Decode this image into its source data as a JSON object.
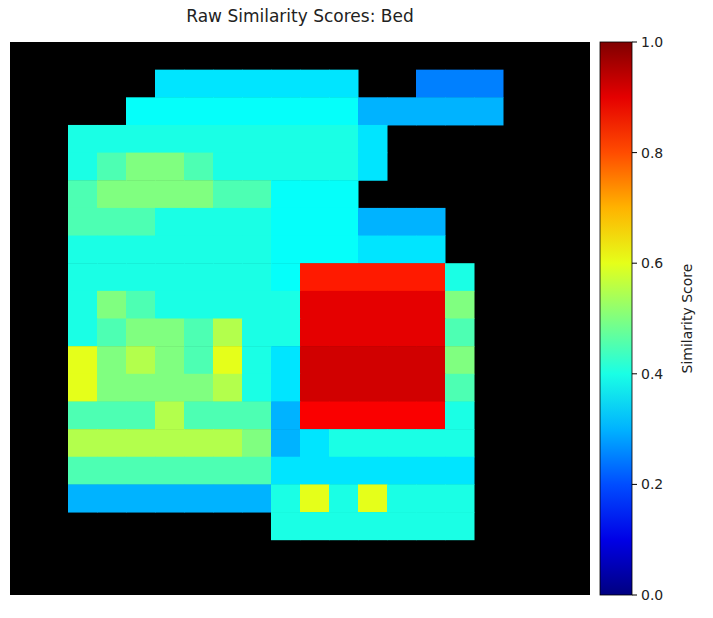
{
  "chart_data": {
    "type": "heatmap",
    "title": "Raw Similarity Scores: Bed",
    "tick_labels": false,
    "colorbar_label": "Similarity Score",
    "colorbar_range": [
      0,
      1
    ],
    "colorbar_ticks": [
      {
        "value": 0,
        "label": "0.0"
      },
      {
        "value": 0.2,
        "label": "0.2"
      },
      {
        "value": 0.4,
        "label": "0.4"
      },
      {
        "value": 0.6,
        "label": "0.6"
      },
      {
        "value": 0.8,
        "label": "0.8"
      },
      {
        "value": 1,
        "label": "1.0"
      }
    ],
    "cells": [
      [
        null,
        null,
        null,
        null,
        null,
        null,
        null,
        null,
        null,
        null,
        null,
        null,
        null,
        null,
        null,
        null,
        null,
        null,
        null,
        null
      ],
      [
        null,
        null,
        null,
        null,
        null,
        0.35,
        0.35,
        0.35,
        0.35,
        0.35,
        0.35,
        0.35,
        null,
        null,
        0.25,
        0.25,
        0.25,
        null,
        null,
        null
      ],
      [
        null,
        null,
        null,
        null,
        0.38,
        0.38,
        0.38,
        0.38,
        0.38,
        0.38,
        0.38,
        0.38,
        0.3,
        0.3,
        0.3,
        0.3,
        0.3,
        null,
        null,
        null
      ],
      [
        null,
        null,
        0.4,
        0.4,
        0.4,
        0.4,
        0.4,
        0.4,
        0.4,
        0.4,
        0.4,
        0.4,
        0.35,
        null,
        null,
        null,
        null,
        null,
        null,
        null
      ],
      [
        null,
        null,
        0.4,
        0.45,
        0.5,
        0.5,
        0.45,
        0.4,
        0.4,
        0.4,
        0.4,
        0.4,
        0.35,
        null,
        null,
        null,
        null,
        null,
        null,
        null
      ],
      [
        null,
        null,
        0.45,
        0.5,
        0.5,
        0.5,
        0.5,
        0.45,
        0.45,
        0.38,
        0.38,
        0.38,
        null,
        null,
        null,
        null,
        null,
        null,
        null,
        null
      ],
      [
        null,
        null,
        0.45,
        0.45,
        0.45,
        0.4,
        0.4,
        0.4,
        0.4,
        0.38,
        0.38,
        0.38,
        0.3,
        0.3,
        0.3,
        null,
        null,
        null,
        null,
        null
      ],
      [
        null,
        null,
        0.4,
        0.4,
        0.4,
        0.4,
        0.4,
        0.4,
        0.4,
        0.38,
        0.38,
        0.38,
        0.35,
        0.35,
        0.35,
        null,
        null,
        null,
        null,
        null
      ],
      [
        null,
        null,
        0.4,
        0.4,
        0.4,
        0.4,
        0.4,
        0.4,
        0.4,
        0.38,
        0.85,
        0.85,
        0.85,
        0.85,
        0.85,
        0.4,
        null,
        null,
        null,
        null
      ],
      [
        null,
        null,
        0.4,
        0.5,
        0.45,
        0.4,
        0.4,
        0.4,
        0.4,
        0.4,
        0.9,
        0.9,
        0.9,
        0.9,
        0.9,
        0.5,
        null,
        null,
        null,
        null
      ],
      [
        null,
        null,
        0.4,
        0.45,
        0.5,
        0.5,
        0.45,
        0.55,
        0.4,
        0.4,
        0.9,
        0.9,
        0.9,
        0.9,
        0.9,
        0.45,
        null,
        null,
        null,
        null
      ],
      [
        null,
        null,
        0.6,
        0.5,
        0.55,
        0.5,
        0.45,
        0.6,
        0.4,
        0.35,
        0.92,
        0.92,
        0.92,
        0.92,
        0.92,
        0.5,
        null,
        null,
        null,
        null
      ],
      [
        null,
        null,
        0.6,
        0.5,
        0.5,
        0.5,
        0.5,
        0.55,
        0.4,
        0.35,
        0.92,
        0.92,
        0.92,
        0.92,
        0.92,
        0.45,
        null,
        null,
        null,
        null
      ],
      [
        null,
        null,
        0.45,
        0.45,
        0.45,
        0.55,
        0.45,
        0.45,
        0.45,
        0.3,
        0.88,
        0.88,
        0.88,
        0.88,
        0.88,
        0.4,
        null,
        null,
        null,
        null
      ],
      [
        null,
        null,
        0.55,
        0.55,
        0.55,
        0.55,
        0.55,
        0.55,
        0.5,
        0.3,
        0.35,
        0.4,
        0.4,
        0.4,
        0.4,
        0.4,
        null,
        null,
        null,
        null
      ],
      [
        null,
        null,
        0.45,
        0.45,
        0.45,
        0.45,
        0.45,
        0.45,
        0.45,
        0.35,
        0.35,
        0.35,
        0.35,
        0.35,
        0.35,
        0.35,
        null,
        null,
        null,
        null
      ],
      [
        null,
        null,
        0.3,
        0.3,
        0.3,
        0.3,
        0.3,
        0.3,
        0.3,
        0.4,
        0.6,
        0.4,
        0.6,
        0.4,
        0.4,
        0.4,
        null,
        null,
        null,
        null
      ],
      [
        null,
        null,
        null,
        null,
        null,
        null,
        null,
        null,
        null,
        0.4,
        0.4,
        0.4,
        0.4,
        0.4,
        0.4,
        0.4,
        null,
        null,
        null,
        null
      ],
      [
        null,
        null,
        null,
        null,
        null,
        null,
        null,
        null,
        null,
        null,
        null,
        null,
        null,
        null,
        null,
        null,
        null,
        null,
        null,
        null
      ],
      [
        null,
        null,
        null,
        null,
        null,
        null,
        null,
        null,
        null,
        null,
        null,
        null,
        null,
        null,
        null,
        null,
        null,
        null,
        null,
        null
      ]
    ]
  }
}
